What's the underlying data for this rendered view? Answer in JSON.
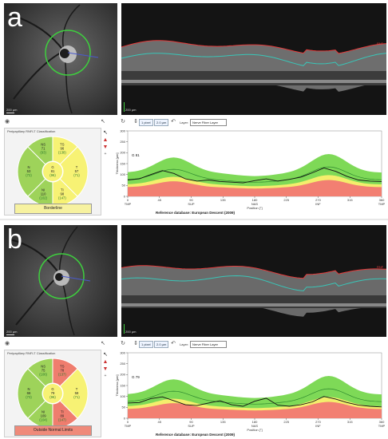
{
  "panels": [
    {
      "letter": "a",
      "fundus": {
        "scale_label": "200 µm",
        "circle_color": "#3ecf3e",
        "scan_direction_label": ""
      },
      "oct": {
        "scale_label": "200 µm",
        "upper_boundary_color": "#e23a3a",
        "lower_boundary_color": "#39c6b8",
        "right_marker": "RNF"
      },
      "toolbar": {
        "btn1": "1 pixel",
        "btn2": "2.0 µm",
        "layer_label": "Layer:",
        "layer_value": "Nerve Fiber Layer"
      },
      "classification": {
        "title": "Peripapillary RNFLT Classification",
        "verdict": "Borderline",
        "verdict_color": "#f7f2a0",
        "sectors": [
          {
            "id": "NS",
            "label": "NS",
            "value": "71",
            "normal": "(93)",
            "color": "#9ed35a"
          },
          {
            "id": "TS",
            "label": "TS",
            "value": "96",
            "normal": "(138)",
            "color": "#f7f274"
          },
          {
            "id": "N",
            "label": "N",
            "value": "53",
            "normal": "(72)",
            "color": "#9ed35a"
          },
          {
            "id": "G",
            "label": "G",
            "value": "81",
            "normal": "(96)",
            "color": "#f7f274"
          },
          {
            "id": "T",
            "label": "T",
            "value": "57",
            "normal": "(71)",
            "color": "#f7f274"
          },
          {
            "id": "NI",
            "label": "NI",
            "value": "110",
            "normal": "(102)",
            "color": "#9ed35a"
          },
          {
            "id": "TI",
            "label": "TI",
            "value": "98",
            "normal": "(147)",
            "color": "#f7f274"
          }
        ]
      },
      "plot": {
        "ylabel": "Thickness [µm]",
        "xlabel": "Position [°]",
        "x_ticks": [
          "0",
          "45",
          "90",
          "135",
          "180",
          "225",
          "270",
          "315",
          "360"
        ],
        "y_ticks": [
          "0",
          "50",
          "100",
          "150",
          "200",
          "250",
          "300"
        ],
        "region_labels": [
          "TMP",
          "SUP",
          "NAS",
          "INF",
          "TMP"
        ],
        "global_label": "G",
        "global_value": "81",
        "curve": [
          75,
          80,
          100,
          118,
          105,
          80,
          70,
          75,
          68,
          65,
          62,
          72,
          80,
          70,
          78,
          88,
          108,
          130,
          115,
          92,
          75,
          70,
          68
        ]
      },
      "reference": "Reference database: European Descent (2009)"
    },
    {
      "letter": "b",
      "fundus": {
        "scale_label": "200 µm",
        "circle_color": "#3ecf3e",
        "scan_direction_label": ""
      },
      "oct": {
        "scale_label": "200 µm",
        "upper_boundary_color": "#e23a3a",
        "lower_boundary_color": "#39c6b8",
        "right_marker": "RNF"
      },
      "toolbar": {
        "btn1": "1 pixel",
        "btn2": "2.0 µm",
        "layer_label": "Layer:",
        "layer_value": "Nerve Fiber Layer"
      },
      "classification": {
        "title": "Peripapillary RNFLT Classification",
        "verdict": "Outside Normal Limits",
        "verdict_color": "#ef8a7a",
        "sectors": [
          {
            "id": "NS",
            "label": "NS",
            "value": "75",
            "normal": "(106)",
            "color": "#9ed35a"
          },
          {
            "id": "TS",
            "label": "TS",
            "value": "78",
            "normal": "(137)",
            "color": "#ef7d6e"
          },
          {
            "id": "N",
            "label": "N",
            "value": "66",
            "normal": "(73)",
            "color": "#9ed35a"
          },
          {
            "id": "G",
            "label": "G",
            "value": "79",
            "normal": "(96)",
            "color": "#f7f274"
          },
          {
            "id": "T",
            "label": "T",
            "value": "58",
            "normal": "(71)",
            "color": "#f7f274"
          },
          {
            "id": "NI",
            "label": "NI",
            "value": "109",
            "normal": "(104)",
            "color": "#9ed35a"
          },
          {
            "id": "TI",
            "label": "TI",
            "value": "89",
            "normal": "(147)",
            "color": "#ef7d6e"
          }
        ]
      },
      "plot": {
        "ylabel": "Thickness [µm]",
        "xlabel": "Position [°]",
        "x_ticks": [
          "0",
          "45",
          "90",
          "135",
          "180",
          "225",
          "270",
          "315",
          "360"
        ],
        "y_ticks": [
          "0",
          "50",
          "100",
          "150",
          "200",
          "250",
          "300"
        ],
        "region_labels": [
          "TMP",
          "SUP",
          "NAS",
          "INF",
          "TMP"
        ],
        "global_label": "G",
        "global_value": "79",
        "curve": [
          70,
          72,
          90,
          98,
          80,
          62,
          58,
          70,
          80,
          62,
          55,
          78,
          92,
          60,
          55,
          62,
          75,
          100,
          88,
          72,
          60,
          55,
          52
        ]
      },
      "reference": "Reference database: European Descent (2009)"
    }
  ]
}
